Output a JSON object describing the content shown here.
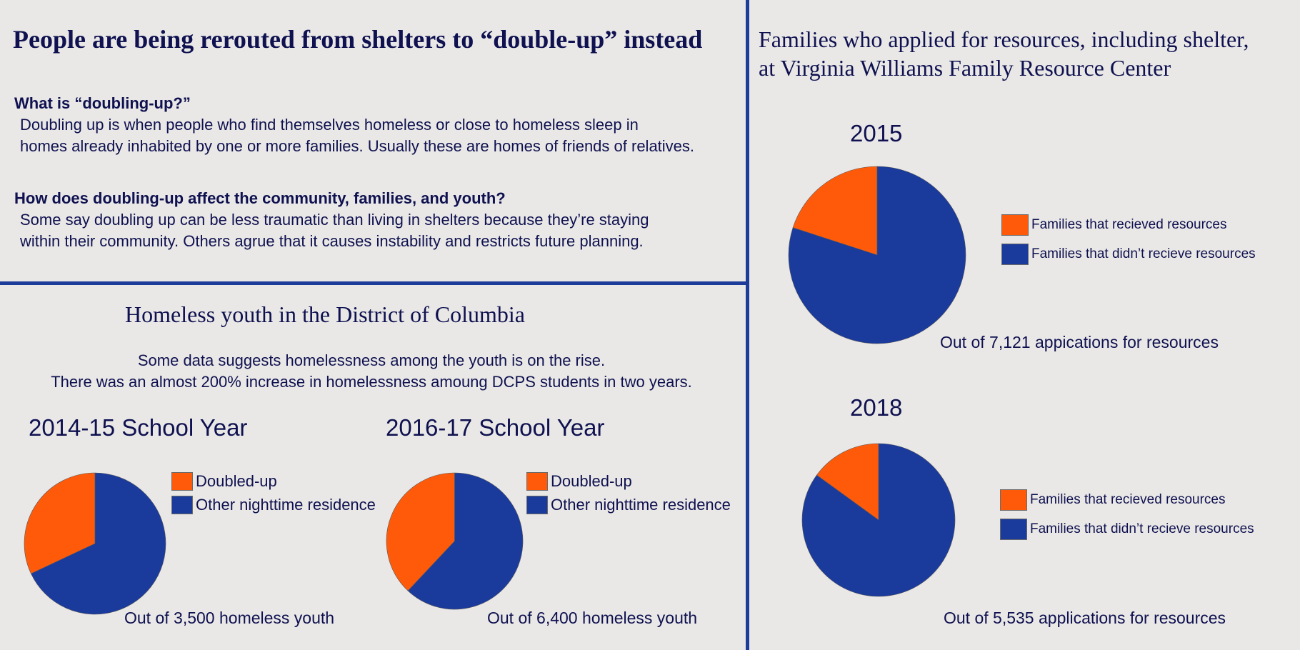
{
  "left_top": {
    "title": "People are being rerouted from shelters to “double-up” instead",
    "q1": "What is “doubling-up?”",
    "a1_line1": "Doubling up is when people who find themselves homeless or close to homeless sleep in",
    "a1_line2": "homes already inhabited by one or more families. Usually these are homes of friends of relatives.",
    "q2": "How does doubling-up affect the community, families, and youth?",
    "a2_line1": "Some say doubling up can be less traumatic than living in shelters because they’re staying",
    "a2_line2": "within their community. Others agrue that it causes instability and restricts future planning."
  },
  "left_bottom": {
    "title": "Homeless youth in the District of Columbia",
    "line1": "Some data suggests homelessness among the youth is on the rise.",
    "line2": "There was an almost 200% increase in homelessness amoung DCPS students in two years."
  },
  "right": {
    "title_line1": "Families who applied for resources, including shelter,",
    "title_line2": "at Virginia Williams Family Resource Center"
  },
  "colors": {
    "orange": "#ff5a09",
    "blue": "#1a3a9c",
    "text": "#0f1150",
    "divider": "#1d3c9a"
  },
  "chart_data": [
    {
      "type": "pie",
      "title": "2014-15 School Year",
      "labels": [
        "Doubled-up",
        "Other nighttime residence"
      ],
      "values": [
        32,
        68
      ],
      "colors": [
        "#ff5a09",
        "#1a3a9c"
      ],
      "caption": "Out of 3,500 homeless youth"
    },
    {
      "type": "pie",
      "title": "2016-17 School Year",
      "labels": [
        "Doubled-up",
        "Other nighttime residence"
      ],
      "values": [
        38,
        62
      ],
      "colors": [
        "#ff5a09",
        "#1a3a9c"
      ],
      "caption": "Out of 6,400 homeless youth"
    },
    {
      "type": "pie",
      "title": "2015",
      "labels": [
        "Families that recieved resources",
        "Families that didn’t recieve resources"
      ],
      "values": [
        20,
        80
      ],
      "colors": [
        "#ff5a09",
        "#1a3a9c"
      ],
      "caption": "Out of 7,121 appications for resources"
    },
    {
      "type": "pie",
      "title": "2018",
      "labels": [
        "Families that recieved resources",
        "Families that didn’t recieve resources"
      ],
      "values": [
        15,
        85
      ],
      "colors": [
        "#ff5a09",
        "#1a3a9c"
      ],
      "caption": "Out of 5,535 applications for resources"
    }
  ]
}
